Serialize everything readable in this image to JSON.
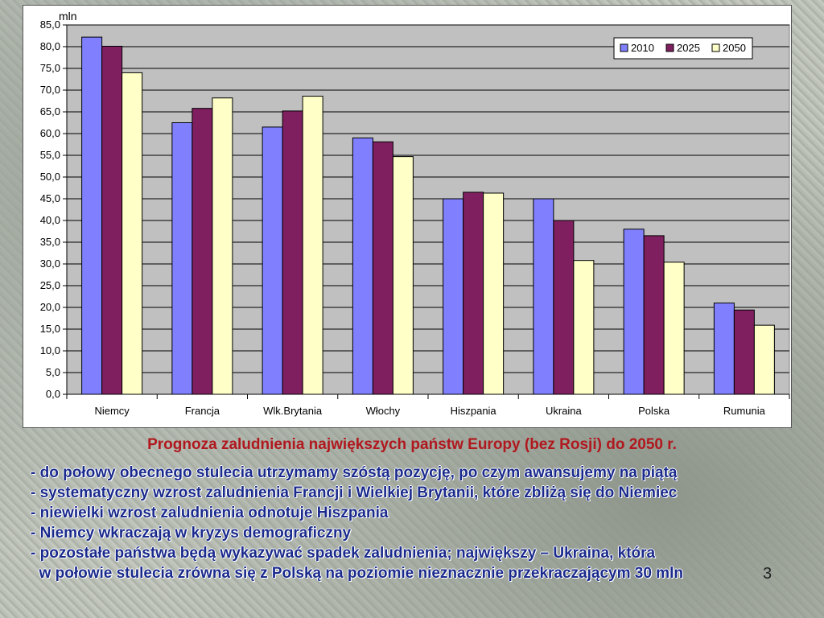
{
  "slide": {
    "caption": "Prognoza zaludnienia największych państw Europy (bez Rosji) do 2050 r.",
    "bullets": [
      "- do połowy obecnego stulecia utrzymamy szóstą pozycję, po czym awansujemy na piątą",
      "- systematyczny wzrost zaludnienia Francji i Wielkiej Brytanii, które zbliżą się do Niemiec",
      "- niewielki wzrost zaludnienia odnotuje Hiszpania",
      "- Niemcy wkraczają w kryzys demograficzny",
      "- pozostałe państwa będą wykazywać spadek zaludnienia; największy – Ukraina, która",
      "  w połowie stulecia zrówna się z Polską na poziomie nieznacznie przekraczającym 30 mln"
    ],
    "page_number": "3"
  },
  "chart_data": {
    "type": "bar",
    "ylabel": "mln",
    "ylim": [
      0,
      85
    ],
    "yticks": [
      "0,0",
      "5,0",
      "10,0",
      "15,0",
      "20,0",
      "25,0",
      "30,0",
      "35,0",
      "40,0",
      "45,0",
      "50,0",
      "55,0",
      "60,0",
      "65,0",
      "70,0",
      "75,0",
      "80,0",
      "85,0"
    ],
    "categories": [
      "Niemcy",
      "Francja",
      "Wlk.Brytania",
      "Włochy",
      "Hiszpania",
      "Ukraina",
      "Polska",
      "Rumunia"
    ],
    "series": [
      {
        "name": "2010",
        "color": "#8080ff",
        "values": [
          82.2,
          62.5,
          61.5,
          59.0,
          45.0,
          45.0,
          38.0,
          21.0
        ]
      },
      {
        "name": "2025",
        "color": "#7f1f5f",
        "values": [
          80.1,
          65.8,
          65.2,
          58.1,
          46.5,
          40.0,
          36.5,
          19.4
        ]
      },
      {
        "name": "2050",
        "color": "#ffffc8",
        "values": [
          74.0,
          68.2,
          68.6,
          54.7,
          46.3,
          30.8,
          30.4,
          15.9
        ]
      }
    ],
    "plot_background": "#c0c0c0",
    "grid": true,
    "legend_position": "top-right"
  }
}
